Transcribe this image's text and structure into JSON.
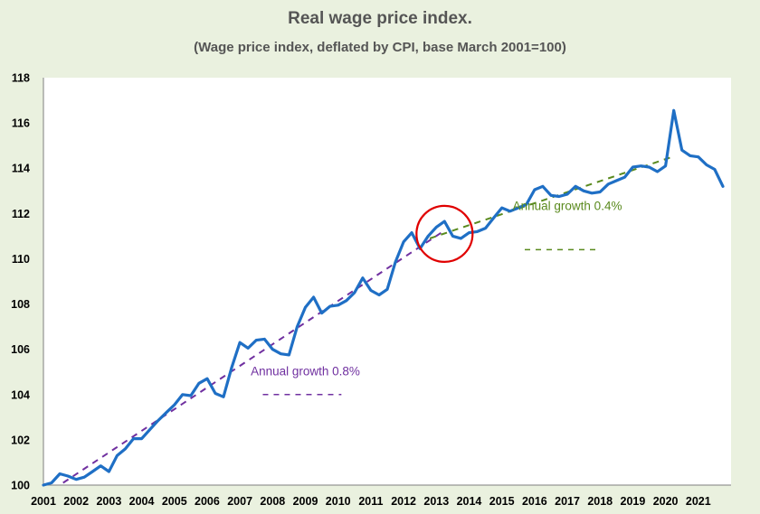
{
  "chart_data": {
    "type": "line",
    "title": "Real wage price index.",
    "subtitle": "(Wage price index, deflated by CPI, base March 2001=100)",
    "xlabel": "",
    "ylabel": "",
    "xlim": [
      2001,
      2022
    ],
    "ylim": [
      100,
      118
    ],
    "x_ticks": [
      "2001",
      "2002",
      "2003",
      "2004",
      "2005",
      "2006",
      "2007",
      "2008",
      "2009",
      "2010",
      "2011",
      "2012",
      "2013",
      "2014",
      "2015",
      "2016",
      "2017",
      "2018",
      "2019",
      "2020",
      "2021"
    ],
    "y_ticks": [
      "100",
      "102",
      "104",
      "106",
      "108",
      "110",
      "112",
      "114",
      "116",
      "118"
    ],
    "grid": false,
    "series": [
      {
        "color": "#1f6fc5",
        "x": [
          2001.0,
          2001.25,
          2001.5,
          2001.75,
          2002.0,
          2002.25,
          2002.5,
          2002.75,
          2003.0,
          2003.25,
          2003.5,
          2003.75,
          2004.0,
          2004.25,
          2004.5,
          2004.75,
          2005.0,
          2005.25,
          2005.5,
          2005.75,
          2006.0,
          2006.25,
          2006.5,
          2006.75,
          2007.0,
          2007.25,
          2007.5,
          2007.75,
          2008.0,
          2008.25,
          2008.5,
          2008.75,
          2009.0,
          2009.25,
          2009.5,
          2009.75,
          2010.0,
          2010.25,
          2010.5,
          2010.75,
          2011.0,
          2011.25,
          2011.5,
          2011.75,
          2012.0,
          2012.25,
          2012.5,
          2012.75,
          2013.0,
          2013.25,
          2013.5,
          2013.75,
          2014.0,
          2014.25,
          2014.5,
          2014.75,
          2015.0,
          2015.25,
          2015.5,
          2015.75,
          2016.0,
          2016.25,
          2016.5,
          2016.75,
          2017.0,
          2017.25,
          2017.5,
          2017.75,
          2018.0,
          2018.25,
          2018.5,
          2018.75,
          2019.0,
          2019.25,
          2019.5,
          2019.75,
          2020.0,
          2020.25,
          2020.5,
          2020.75,
          2021.0,
          2021.25,
          2021.5,
          2021.75
        ],
        "values": [
          100.0,
          100.1,
          100.5,
          100.4,
          100.25,
          100.35,
          100.6,
          100.85,
          100.6,
          101.3,
          101.6,
          102.05,
          102.05,
          102.45,
          102.85,
          103.2,
          103.55,
          104.0,
          103.95,
          104.5,
          104.7,
          104.05,
          103.9,
          105.2,
          106.3,
          106.05,
          106.4,
          106.45,
          106.0,
          105.8,
          105.75,
          107.0,
          107.85,
          108.3,
          107.6,
          107.9,
          107.95,
          108.15,
          108.5,
          109.15,
          108.6,
          108.4,
          108.65,
          109.85,
          110.75,
          111.15,
          110.45,
          111.0,
          111.4,
          111.65,
          111.0,
          110.9,
          111.15,
          111.2,
          111.35,
          111.8,
          112.25,
          112.1,
          112.25,
          112.4,
          113.05,
          113.2,
          112.8,
          112.75,
          112.85,
          113.2,
          113.0,
          112.9,
          112.95,
          113.3,
          113.45,
          113.6,
          114.05,
          114.1,
          114.05,
          113.85,
          114.1,
          116.55,
          114.8,
          114.55,
          114.5,
          114.15,
          113.95,
          113.2
        ]
      }
    ],
    "trendlines": [
      {
        "label": "Annual growth 0.8%",
        "color": "#7030a0",
        "x": [
          2001.6,
          2013.2
        ],
        "y": [
          100.1,
          111.2
        ]
      },
      {
        "label": "Annual growth 0.4%",
        "color": "#5a8a1e",
        "x": [
          2012.8,
          2020.2
        ],
        "y": [
          110.9,
          114.5
        ]
      }
    ],
    "highlight": {
      "shape": "circle",
      "color": "#e00000",
      "x": 2013.25,
      "y": 111.1
    }
  }
}
